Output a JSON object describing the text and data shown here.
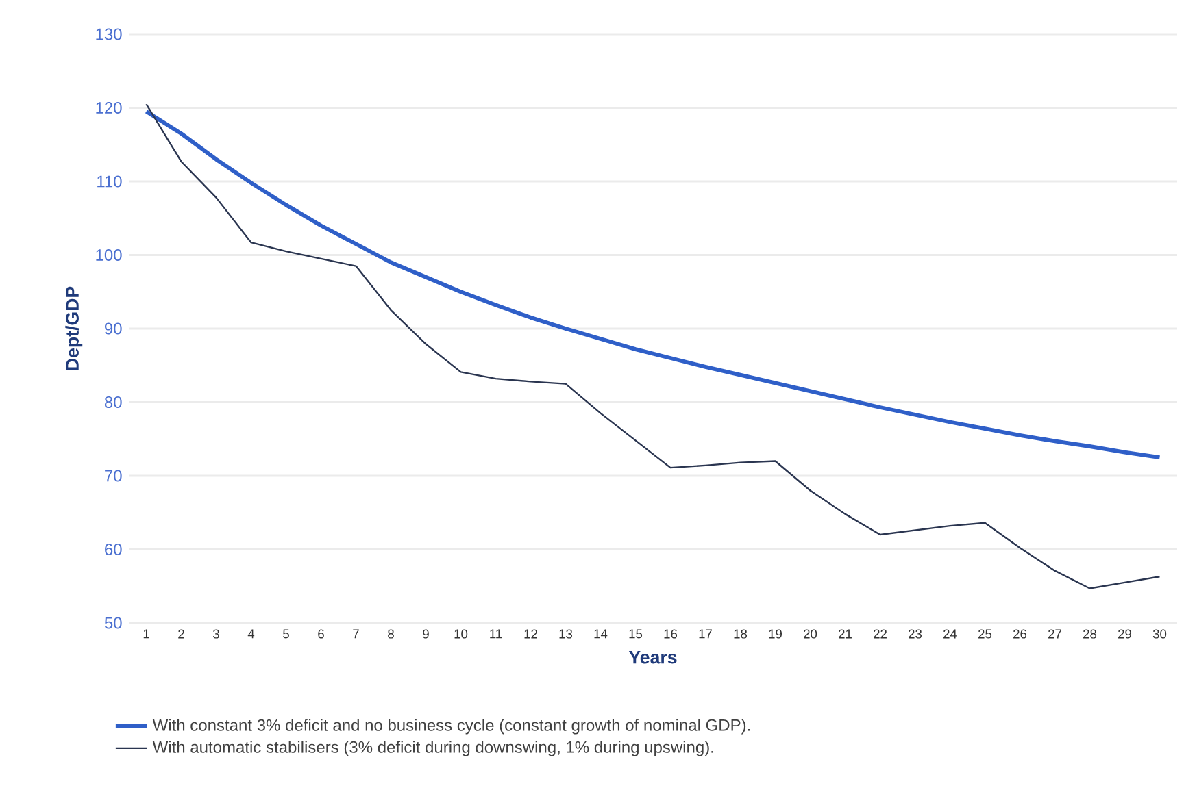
{
  "chart_data": {
    "type": "line",
    "xlabel": "Years",
    "ylabel": "Dept/GDP",
    "categories": [
      "1",
      "2",
      "3",
      "4",
      "5",
      "6",
      "7",
      "8",
      "9",
      "10",
      "11",
      "12",
      "13",
      "14",
      "15",
      "16",
      "17",
      "18",
      "19",
      "20",
      "21",
      "22",
      "23",
      "24",
      "25",
      "26",
      "27",
      "28",
      "29",
      "30"
    ],
    "series": [
      {
        "name": "With constant 3% deficit and no business cycle (constant growth of nominal GDP).",
        "color": "#2f5fc8",
        "values": [
          119.5,
          116.5,
          113,
          109.8,
          106.8,
          104,
          101.5,
          99,
          97,
          95,
          93.2,
          91.5,
          90,
          88.6,
          87.2,
          86,
          84.8,
          83.7,
          82.6,
          81.5,
          80.4,
          79.3,
          78.3,
          77.3,
          76.4,
          75.5,
          74.7,
          74,
          73.2,
          72.5
        ]
      },
      {
        "name": "With automatic stabilisers (3% deficit during downswing, 1% during upswing).",
        "color": "#2a3550",
        "values": [
          120.5,
          112.7,
          107.8,
          101.7,
          100.5,
          99.5,
          98.5,
          92.5,
          87.9,
          84.1,
          83.2,
          82.8,
          82.5,
          78.5,
          74.8,
          71.1,
          71.4,
          71.8,
          72,
          68,
          64.8,
          62,
          62.6,
          63.2,
          63.6,
          60.2,
          57.1,
          54.7,
          55.5,
          56.3
        ]
      }
    ],
    "ylim": [
      50,
      130
    ],
    "yticks": [
      50,
      60,
      70,
      80,
      90,
      100,
      110,
      120,
      130
    ],
    "grid": "y",
    "legend": "bottom",
    "marker": "none",
    "line_style": "solid"
  }
}
